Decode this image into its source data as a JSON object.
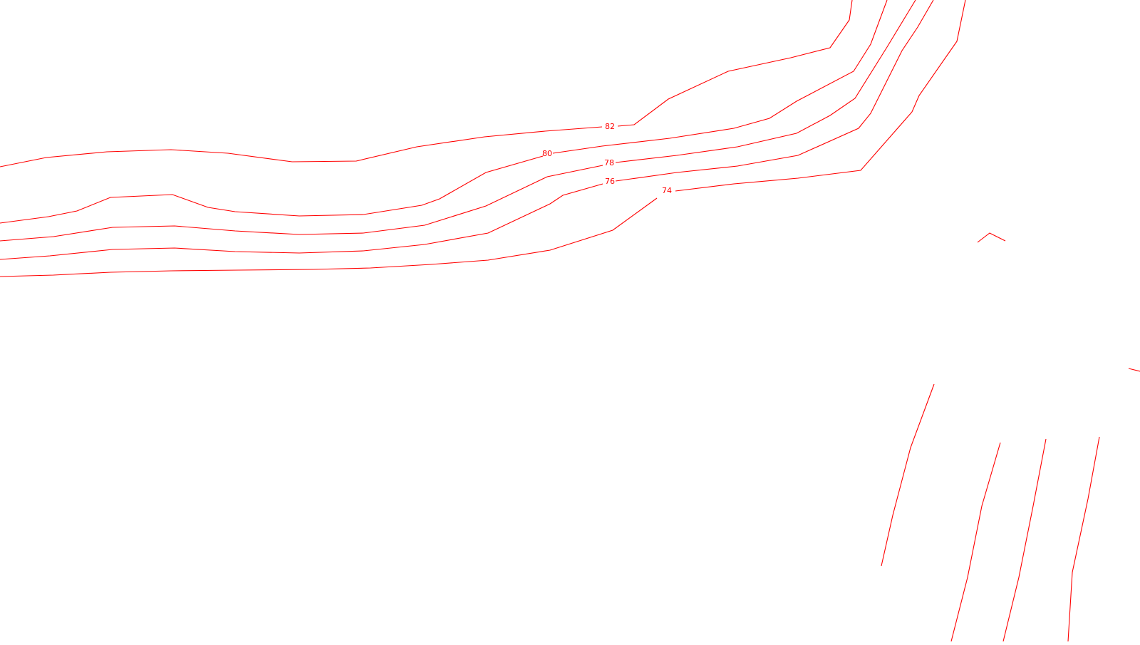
{
  "contour_color": "#ff0000",
  "background_color": "#ffffff",
  "contours": [
    {
      "id": "contour-82",
      "label": "82"
    },
    {
      "id": "contour-80",
      "label": "80"
    },
    {
      "id": "contour-78",
      "label": "78"
    },
    {
      "id": "contour-76",
      "label": "76"
    },
    {
      "id": "contour-74",
      "label": "74"
    }
  ]
}
